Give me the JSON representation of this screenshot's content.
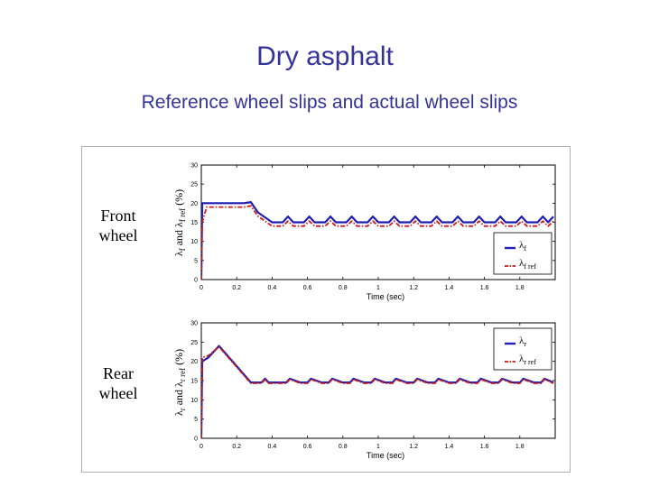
{
  "slide": {
    "title": "Dry asphalt",
    "subtitle": "Reference wheel slips and actual wheel slips"
  },
  "panels": {
    "front": {
      "label_line1": "Front",
      "label_line2": "wheel",
      "ylabel": "λf and λf ref (%)"
    },
    "rear": {
      "label_line1": "Rear",
      "label_line2": "wheel",
      "ylabel": "λr and λr ref (%)"
    }
  },
  "colors": {
    "actual": "#1f1fb4",
    "reference": "#d01818",
    "title": "#333399"
  },
  "chart_data": [
    {
      "type": "line",
      "xlabel": "Time (sec)",
      "ylabel": "λf and λf ref (%)",
      "xlim": [
        0,
        2
      ],
      "ylim": [
        0,
        30
      ],
      "xticks": [
        "0",
        "0.2",
        "0.4",
        "0.6",
        "0.8",
        "1",
        "1.2",
        "1.4",
        "1.6",
        "1.8"
      ],
      "yticks": [
        "0",
        "5",
        "10",
        "15",
        "20",
        "25",
        "30"
      ],
      "grid": false,
      "legend_position": "bottom-right",
      "series": [
        {
          "name": "λf",
          "style": "solid",
          "color": "#1f1fb4",
          "x": [
            0,
            0.005,
            0.06,
            0.12,
            0.18,
            0.24,
            0.28,
            0.32,
            0.4,
            0.46,
            0.49,
            0.52,
            0.58,
            0.61,
            0.64,
            0.7,
            0.73,
            0.76,
            0.82,
            0.85,
            0.88,
            0.94,
            0.97,
            1.0,
            1.06,
            1.09,
            1.12,
            1.18,
            1.21,
            1.24,
            1.3,
            1.33,
            1.36,
            1.42,
            1.45,
            1.48,
            1.54,
            1.57,
            1.6,
            1.66,
            1.69,
            1.72,
            1.78,
            1.81,
            1.84,
            1.9,
            1.93,
            1.96,
            1.99
          ],
          "y": [
            0,
            20,
            20,
            20,
            20,
            20,
            20.3,
            17.6,
            15,
            15,
            16.5,
            15,
            15,
            16.5,
            15,
            15,
            16.5,
            15,
            15,
            16.5,
            15,
            15,
            16.5,
            15,
            15,
            16.5,
            15,
            15,
            16.5,
            15,
            15,
            16.5,
            15,
            15,
            16.5,
            15,
            15,
            16.5,
            15,
            15,
            16.5,
            15,
            15,
            16.5,
            15,
            15,
            16.5,
            15,
            16.5
          ]
        },
        {
          "name": "λf ref",
          "style": "dashdot",
          "color": "#d01818",
          "x": [
            0,
            0.005,
            0.03,
            0.06,
            0.12,
            0.18,
            0.24,
            0.28,
            0.32,
            0.4,
            0.46,
            0.49,
            0.52,
            0.58,
            0.61,
            0.64,
            0.7,
            0.73,
            0.76,
            0.82,
            0.85,
            0.88,
            0.94,
            0.97,
            1.0,
            1.06,
            1.09,
            1.12,
            1.18,
            1.21,
            1.24,
            1.3,
            1.33,
            1.36,
            1.42,
            1.45,
            1.48,
            1.54,
            1.57,
            1.6,
            1.66,
            1.69,
            1.72,
            1.78,
            1.81,
            1.84,
            1.9,
            1.93,
            1.96,
            1.99
          ],
          "y": [
            0,
            15,
            19,
            19,
            19,
            19,
            19,
            19.3,
            16.6,
            14,
            14,
            15.3,
            14,
            14,
            15.3,
            14,
            14,
            15.3,
            14,
            14,
            15.3,
            14,
            14,
            15.3,
            14,
            14,
            15.3,
            14,
            14,
            15.3,
            14,
            14,
            15.3,
            14,
            14,
            15.3,
            14,
            14,
            15.3,
            14,
            14,
            15.3,
            14,
            14,
            15.3,
            14,
            14,
            15.3,
            14,
            15.3
          ]
        }
      ]
    },
    {
      "type": "line",
      "xlabel": "Time (sec)",
      "ylabel": "λr and λr ref (%)",
      "xlim": [
        0,
        2
      ],
      "ylim": [
        0,
        30
      ],
      "xticks": [
        "0",
        "0.2",
        "0.4",
        "0.6",
        "0.8",
        "1",
        "1.2",
        "1.4",
        "1.6",
        "1.8"
      ],
      "yticks": [
        "0",
        "5",
        "10",
        "15",
        "20",
        "25",
        "30"
      ],
      "grid": false,
      "legend_position": "top-right",
      "series": [
        {
          "name": "λr",
          "style": "solid",
          "color": "#1f1fb4",
          "x": [
            0,
            0.005,
            0.04,
            0.1,
            0.28,
            0.34,
            0.36,
            0.38,
            0.44,
            0.48,
            0.5,
            0.56,
            0.6,
            0.62,
            0.68,
            0.72,
            0.74,
            0.8,
            0.84,
            0.86,
            0.92,
            0.96,
            0.98,
            1.04,
            1.08,
            1.1,
            1.16,
            1.2,
            1.22,
            1.28,
            1.32,
            1.34,
            1.4,
            1.44,
            1.46,
            1.52,
            1.56,
            1.58,
            1.64,
            1.68,
            1.7,
            1.76,
            1.8,
            1.82,
            1.88,
            1.92,
            1.94,
            1.99
          ],
          "y": [
            0,
            20,
            21,
            24,
            14.5,
            14.5,
            15.5,
            14.5,
            14.5,
            14.5,
            15.5,
            14.5,
            14.5,
            15.5,
            14.5,
            14.5,
            15.5,
            14.5,
            14.5,
            15.5,
            14.5,
            14.5,
            15.5,
            14.5,
            14.5,
            15.5,
            14.5,
            14.5,
            15.5,
            14.5,
            14.5,
            15.5,
            14.5,
            14.5,
            15.5,
            14.5,
            14.5,
            15.5,
            14.5,
            14.5,
            15.5,
            14.5,
            14.5,
            15.5,
            14.5,
            14.5,
            15.5,
            14.5
          ]
        },
        {
          "name": "λr ref",
          "style": "dashdot",
          "color": "#d01818",
          "x": [
            0,
            0.005,
            0.04,
            0.1,
            0.28,
            0.34,
            0.36,
            0.38,
            0.44,
            0.48,
            0.5,
            0.56,
            0.6,
            0.62,
            0.68,
            0.72,
            0.74,
            0.8,
            0.84,
            0.86,
            0.92,
            0.96,
            0.98,
            1.04,
            1.08,
            1.1,
            1.16,
            1.2,
            1.22,
            1.28,
            1.32,
            1.34,
            1.4,
            1.44,
            1.46,
            1.52,
            1.56,
            1.58,
            1.64,
            1.68,
            1.7,
            1.76,
            1.8,
            1.82,
            1.88,
            1.92,
            1.94,
            1.99
          ],
          "y": [
            0,
            21,
            21.5,
            23.8,
            14.3,
            14.3,
            15.3,
            14.3,
            14.3,
            14.3,
            15.3,
            14.3,
            14.3,
            15.3,
            14.3,
            14.3,
            15.3,
            14.3,
            14.3,
            15.3,
            14.3,
            14.3,
            15.3,
            14.3,
            14.3,
            15.3,
            14.3,
            14.3,
            15.3,
            14.3,
            14.3,
            15.3,
            14.3,
            14.3,
            15.3,
            14.3,
            14.3,
            15.3,
            14.3,
            14.3,
            15.3,
            14.3,
            14.3,
            15.3,
            14.3,
            14.3,
            15.3,
            14.3
          ]
        }
      ]
    }
  ]
}
